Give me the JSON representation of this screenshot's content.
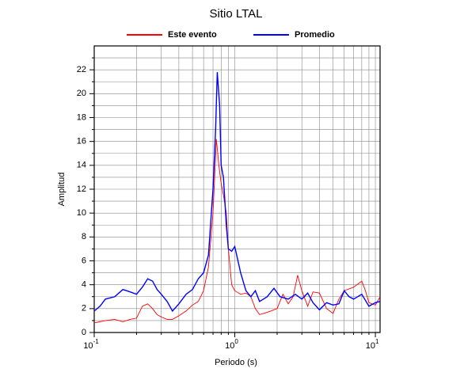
{
  "chart_data": {
    "type": "line",
    "title": "Sitio LTAL",
    "xlabel": "Periodo (s)",
    "ylabel": "Amplitud",
    "xscale": "log",
    "xlim": [
      0.1,
      10.8
    ],
    "ylim": [
      0,
      24
    ],
    "xticks": [
      {
        "value": 0.1,
        "label": "10",
        "exponent": "-1"
      },
      {
        "value": 1,
        "label": "10",
        "exponent": "0"
      },
      {
        "value": 10,
        "label": "10",
        "exponent": "1"
      }
    ],
    "xminor": [
      0.2,
      0.3,
      0.4,
      0.5,
      0.6,
      0.7,
      0.8,
      0.9,
      2,
      3,
      4,
      5,
      6,
      7,
      8,
      9
    ],
    "yticks": [
      0,
      2,
      4,
      6,
      8,
      10,
      12,
      14,
      16,
      18,
      20,
      22
    ],
    "yminor": [
      1,
      3,
      5,
      7,
      9,
      11,
      13,
      15,
      17,
      19,
      21,
      23
    ],
    "grid": true,
    "legend": "top",
    "series": [
      {
        "name": "Este evento",
        "color": "#ff0000",
        "x": [
          0.1,
          0.12,
          0.14,
          0.16,
          0.18,
          0.2,
          0.22,
          0.24,
          0.26,
          0.28,
          0.3,
          0.33,
          0.36,
          0.4,
          0.45,
          0.5,
          0.55,
          0.6,
          0.65,
          0.7,
          0.74,
          0.77,
          0.8,
          0.83,
          0.87,
          0.9,
          0.95,
          1.0,
          1.1,
          1.2,
          1.3,
          1.4,
          1.5,
          1.6,
          1.8,
          2.0,
          2.2,
          2.4,
          2.6,
          2.8,
          3.0,
          3.3,
          3.6,
          4.0,
          4.5,
          5.0,
          5.5,
          6.0,
          7.0,
          8.0,
          8.5,
          9.0,
          10.0,
          10.8
        ],
        "values": [
          0.8,
          1.0,
          1.1,
          0.9,
          1.1,
          1.2,
          2.2,
          2.4,
          2.0,
          1.5,
          1.3,
          1.1,
          1.1,
          1.4,
          1.8,
          2.3,
          2.6,
          3.5,
          5.5,
          10,
          16.2,
          14,
          12.5,
          11.5,
          10,
          7,
          4,
          3.5,
          3.2,
          3.3,
          3.0,
          2.0,
          1.5,
          1.6,
          1.8,
          2.0,
          3.2,
          2.4,
          3.0,
          4.8,
          3.5,
          2.2,
          3.4,
          3.3,
          2.0,
          1.6,
          2.8,
          3.5,
          3.8,
          4.3,
          3.5,
          2.5,
          2.3,
          3.0
        ]
      },
      {
        "name": "Promedio",
        "color": "#0000ff",
        "x": [
          0.1,
          0.11,
          0.12,
          0.14,
          0.16,
          0.18,
          0.2,
          0.22,
          0.24,
          0.26,
          0.28,
          0.3,
          0.33,
          0.36,
          0.4,
          0.45,
          0.5,
          0.55,
          0.6,
          0.65,
          0.7,
          0.73,
          0.75,
          0.78,
          0.8,
          0.83,
          0.87,
          0.9,
          0.95,
          1.0,
          1.1,
          1.2,
          1.3,
          1.4,
          1.5,
          1.7,
          1.9,
          2.1,
          2.4,
          2.7,
          3.0,
          3.3,
          3.6,
          4.0,
          4.5,
          5.0,
          5.5,
          6.0,
          6.5,
          7.0,
          8.0,
          9.0,
          10.0,
          10.8
        ],
        "values": [
          1.8,
          2.2,
          2.8,
          3.0,
          3.6,
          3.4,
          3.2,
          3.8,
          4.5,
          4.3,
          3.6,
          3.2,
          2.6,
          1.8,
          2.4,
          3.2,
          3.6,
          4.5,
          5.0,
          6.5,
          12,
          17,
          21.8,
          19,
          14,
          13,
          9,
          7,
          6.8,
          7.2,
          5.0,
          3.5,
          3.0,
          3.5,
          2.6,
          3.0,
          3.7,
          3.0,
          2.8,
          3.2,
          2.8,
          3.3,
          2.5,
          1.9,
          2.5,
          2.3,
          2.4,
          3.5,
          3.0,
          2.8,
          3.2,
          2.2,
          2.5,
          2.6
        ]
      }
    ]
  }
}
